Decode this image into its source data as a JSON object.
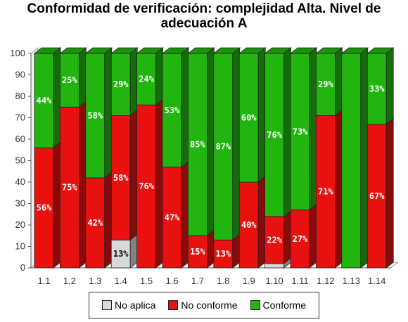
{
  "chart_data": {
    "type": "bar",
    "stacked": true,
    "style": "3d",
    "title_lines": [
      "Conformidad de verificación: complejidad Alta. Nivel de",
      "adecuación A"
    ],
    "categories": [
      "1.1",
      "1.2",
      "1.3",
      "1.4",
      "1.5",
      "1.6",
      "1.7",
      "1.8",
      "1.9",
      "1.10",
      "1.11",
      "1.12",
      "1.13",
      "1.14"
    ],
    "series": [
      {
        "name": "No aplica",
        "color": "#d9d9d9",
        "values": [
          0,
          0,
          0,
          13,
          0,
          0,
          0,
          0,
          0,
          2,
          0,
          0,
          0,
          0
        ],
        "labels": [
          "",
          "",
          "",
          "13%",
          "",
          "",
          "",
          "",
          "",
          "",
          "",
          "",
          "",
          ""
        ]
      },
      {
        "name": "No conforme",
        "color": "#e8110f",
        "values": [
          56,
          75,
          42,
          58,
          76,
          47,
          15,
          13,
          40,
          22,
          27,
          71,
          0,
          67
        ],
        "labels": [
          "56%",
          "75%",
          "42%",
          "58%",
          "76%",
          "47%",
          "15%",
          "13%",
          "40%",
          "22%",
          "27%",
          "71%",
          "",
          "67%"
        ]
      },
      {
        "name": "Conforme",
        "color": "#22b510",
        "values": [
          44,
          25,
          58,
          29,
          24,
          53,
          85,
          87,
          60,
          76,
          73,
          29,
          100,
          33
        ],
        "labels": [
          "44%",
          "25%",
          "58%",
          "29%",
          "24%",
          "53%",
          "85%",
          "87%",
          "60%",
          "76%",
          "73%",
          "29%",
          "",
          "33%"
        ]
      }
    ],
    "y_ticks": [
      0,
      10,
      20,
      30,
      40,
      50,
      60,
      70,
      80,
      90,
      100
    ],
    "ylim": [
      0,
      100
    ],
    "grid": false,
    "legend_position": "bottom"
  }
}
